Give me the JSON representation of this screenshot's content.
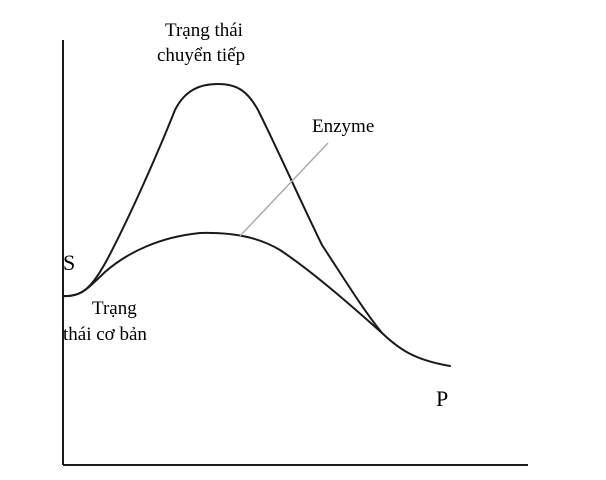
{
  "labels": {
    "transition_state_line1": "Trạng thái",
    "transition_state_line2": "chuyển tiếp",
    "enzyme": "Enzyme",
    "substrate": "S",
    "ground_state_line1": "Trạng",
    "ground_state_line2": "thái cơ bản",
    "product": "P"
  },
  "colors": {
    "line": "#1a1a1a",
    "leader": "#a8a8a8",
    "background": "#ffffff"
  }
}
